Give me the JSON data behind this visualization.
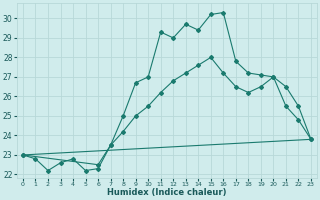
{
  "line1_x": [
    0,
    1,
    2,
    3,
    4,
    5,
    6,
    7,
    8,
    9,
    10,
    11,
    12,
    13,
    14,
    15,
    16,
    17,
    18,
    19,
    20,
    21,
    22,
    23
  ],
  "line1_y": [
    23.0,
    22.8,
    22.2,
    22.6,
    22.8,
    22.2,
    22.3,
    23.5,
    25.0,
    26.7,
    27.0,
    29.3,
    29.0,
    29.7,
    29.4,
    30.2,
    30.3,
    27.8,
    27.2,
    27.1,
    27.0,
    25.5,
    24.8,
    23.8
  ],
  "line2_x": [
    0,
    6,
    7,
    8,
    9,
    10,
    11,
    12,
    13,
    14,
    15,
    16,
    17,
    18,
    19,
    20,
    21,
    22,
    23
  ],
  "line2_y": [
    23.0,
    22.5,
    23.5,
    24.2,
    25.0,
    25.5,
    26.2,
    26.8,
    27.2,
    27.6,
    28.0,
    27.2,
    26.5,
    26.2,
    26.5,
    27.0,
    26.5,
    25.5,
    23.8
  ],
  "line3_x": [
    0,
    23
  ],
  "line3_y": [
    23.0,
    23.8
  ],
  "line_color": "#1a7a6e",
  "bg_color": "#d0ecec",
  "grid_color": "#b8d8d8",
  "xlabel": "Humidex (Indice chaleur)",
  "ylim": [
    21.8,
    30.8
  ],
  "xlim": [
    -0.5,
    23.5
  ],
  "yticks": [
    22,
    23,
    24,
    25,
    26,
    27,
    28,
    29,
    30
  ],
  "xticks": [
    0,
    1,
    2,
    3,
    4,
    5,
    6,
    7,
    8,
    9,
    10,
    11,
    12,
    13,
    14,
    15,
    16,
    17,
    18,
    19,
    20,
    21,
    22,
    23
  ],
  "xlabel_color": "#1a5a5a",
  "tick_color": "#1a5a5a"
}
